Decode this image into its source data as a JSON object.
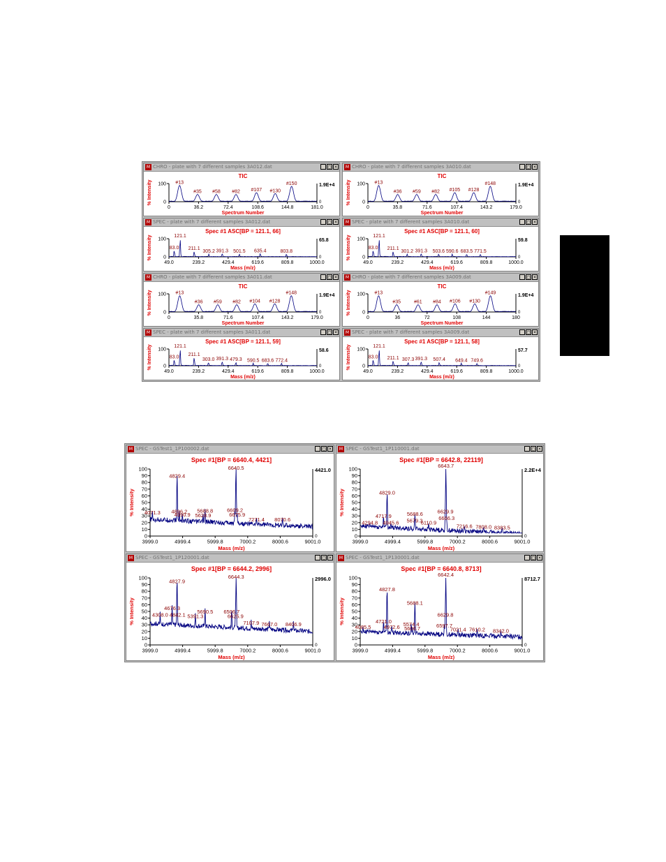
{
  "page": {
    "tab_marker": "black-tab"
  },
  "colors": {
    "red": "#e00000",
    "blue": "#000080",
    "peak_label": "#8b0000",
    "axis": "#000000"
  },
  "top_grid": [
    {
      "kind": "chro",
      "window_title": "CHRO - plate with 7 different samples 3A012.dat",
      "plot_title": "TIC",
      "ylabel": "% Intensity",
      "xlabel": "Spectrum Number",
      "max_label": "1.9E+4",
      "zero_label": "0",
      "y_top_label": "100",
      "x_ticks": [
        "0",
        "36.2",
        "72.4",
        "108.6",
        "144.8",
        "181.0"
      ],
      "xlim": [
        0,
        181
      ],
      "peaks": [
        {
          "x": 13,
          "y": 90,
          "label": "#13"
        },
        {
          "x": 35,
          "y": 40,
          "label": "#35"
        },
        {
          "x": 58,
          "y": 40,
          "label": "#58"
        },
        {
          "x": 82,
          "y": 40,
          "label": "#82"
        },
        {
          "x": 107,
          "y": 50,
          "label": "#107"
        },
        {
          "x": 130,
          "y": 45,
          "label": "#130"
        },
        {
          "x": 150,
          "y": 85,
          "label": "#150"
        }
      ]
    },
    {
      "kind": "chro",
      "window_title": "CHRO - plate with 7 different samples 3A010.dat",
      "plot_title": "TIC",
      "ylabel": "% Intensity",
      "xlabel": "Spectrum Number",
      "max_label": "1.9E+4",
      "zero_label": "0",
      "y_top_label": "100",
      "x_ticks": [
        "0",
        "35.8",
        "71.6",
        "107.4",
        "143.2",
        "179.0"
      ],
      "xlim": [
        0,
        179
      ],
      "peaks": [
        {
          "x": 13,
          "y": 90,
          "label": "#13"
        },
        {
          "x": 36,
          "y": 40,
          "label": "#36"
        },
        {
          "x": 59,
          "y": 40,
          "label": "#59"
        },
        {
          "x": 82,
          "y": 40,
          "label": "#82"
        },
        {
          "x": 105,
          "y": 50,
          "label": "#105"
        },
        {
          "x": 128,
          "y": 50,
          "label": "#128"
        },
        {
          "x": 148,
          "y": 85,
          "label": "#148"
        }
      ]
    },
    {
      "kind": "spec",
      "window_title": "SPEC - plate with 7 different samples 3A012.dat",
      "plot_title": "Spec #1 ASC[BP = 121.1, 66]",
      "ylabel": "% Intensity",
      "xlabel": "Mass (m/z)",
      "max_label": "65.8",
      "zero_label": "0",
      "y_top_label": "100",
      "x_ticks": [
        "49.0",
        "239.2",
        "429.4",
        "619.6",
        "809.8",
        "1000.0"
      ],
      "xlim": [
        49,
        1000
      ],
      "peaks": [
        {
          "x": 121.1,
          "y": 100,
          "label": "121.1"
        },
        {
          "x": 83,
          "y": 35,
          "label": "83.0"
        },
        {
          "x": 211.1,
          "y": 30,
          "label": "211.1"
        },
        {
          "x": 305.2,
          "y": 15,
          "label": "305.2"
        },
        {
          "x": 391.3,
          "y": 18,
          "label": "391.3"
        },
        {
          "x": 501.5,
          "y": 15,
          "label": "501.5"
        },
        {
          "x": 635.4,
          "y": 18,
          "label": "635.4"
        },
        {
          "x": 803.8,
          "y": 15,
          "label": "803.8"
        }
      ]
    },
    {
      "kind": "spec",
      "window_title": "SPEC - plate with 7 different samples 3A010.dat",
      "plot_title": "Spec #1 ASC[BP = 121.1, 60]",
      "ylabel": "% Intensity",
      "xlabel": "Mass (m/z)",
      "max_label": "59.8",
      "zero_label": "0",
      "y_top_label": "100",
      "x_ticks": [
        "49.0",
        "239.2",
        "429.4",
        "619.6",
        "809.8",
        "1000.0"
      ],
      "xlim": [
        49,
        1000
      ],
      "peaks": [
        {
          "x": 121.1,
          "y": 100,
          "label": "121.1"
        },
        {
          "x": 83,
          "y": 35,
          "label": "83.0"
        },
        {
          "x": 211.1,
          "y": 30,
          "label": "211.1"
        },
        {
          "x": 301.2,
          "y": 15,
          "label": "301.2"
        },
        {
          "x": 391.3,
          "y": 18,
          "label": "391.3"
        },
        {
          "x": 503.6,
          "y": 15,
          "label": "503.6"
        },
        {
          "x": 590.6,
          "y": 15,
          "label": "590.6"
        },
        {
          "x": 683.5,
          "y": 15,
          "label": "683.5"
        },
        {
          "x": 771.5,
          "y": 15,
          "label": "771.5"
        }
      ]
    },
    {
      "kind": "chro",
      "window_title": "CHRO - plate with 7 different samples 3A011.dat",
      "plot_title": "TIC",
      "ylabel": "% Intensity",
      "xlabel": "Spectrum Number",
      "max_label": "1.9E+4",
      "zero_label": "0",
      "y_top_label": "100",
      "x_ticks": [
        "0",
        "35.8",
        "71.6",
        "107.4",
        "143.2",
        "179.0"
      ],
      "xlim": [
        0,
        179
      ],
      "peaks": [
        {
          "x": 13,
          "y": 90,
          "label": "#13"
        },
        {
          "x": 36,
          "y": 40,
          "label": "#36"
        },
        {
          "x": 59,
          "y": 40,
          "label": "#59"
        },
        {
          "x": 82,
          "y": 40,
          "label": "#82"
        },
        {
          "x": 104,
          "y": 45,
          "label": "#104"
        },
        {
          "x": 128,
          "y": 45,
          "label": "#128"
        },
        {
          "x": 148,
          "y": 90,
          "label": "#148"
        }
      ]
    },
    {
      "kind": "chro",
      "window_title": "CHRO - plate with 7 different samples 3A009.dat",
      "plot_title": "TIC",
      "ylabel": "% Intensity",
      "xlabel": "Spectrum Number",
      "max_label": "1.9E+4",
      "zero_label": "0",
      "y_top_label": "100",
      "x_ticks": [
        "0",
        "36",
        "72",
        "108",
        "144",
        "180"
      ],
      "xlim": [
        0,
        180
      ],
      "peaks": [
        {
          "x": 13,
          "y": 90,
          "label": "#13"
        },
        {
          "x": 35,
          "y": 40,
          "label": "#35"
        },
        {
          "x": 61,
          "y": 40,
          "label": "#61"
        },
        {
          "x": 84,
          "y": 40,
          "label": "#84"
        },
        {
          "x": 106,
          "y": 45,
          "label": "#106"
        },
        {
          "x": 130,
          "y": 45,
          "label": "#130"
        },
        {
          "x": 149,
          "y": 90,
          "label": "#149"
        }
      ]
    },
    {
      "kind": "spec",
      "window_title": "SPEC - plate with 7 different samples 3A011.dat",
      "plot_title": "Spec #1 ASC[BP = 121.1, 59]",
      "ylabel": "% Intensity",
      "xlabel": "Mass (m/z)",
      "max_label": "58.6",
      "zero_label": "0",
      "y_top_label": "100",
      "x_ticks": [
        "49.0",
        "239.2",
        "429.4",
        "619.6",
        "809.8",
        "1000.0"
      ],
      "xlim": [
        49,
        1000
      ],
      "peaks": [
        {
          "x": 121.1,
          "y": 100,
          "label": "121.1"
        },
        {
          "x": 83,
          "y": 35,
          "label": "83.0"
        },
        {
          "x": 211.1,
          "y": 50,
          "label": "211.1"
        },
        {
          "x": 303,
          "y": 20,
          "label": "303.0"
        },
        {
          "x": 391.3,
          "y": 25,
          "label": "391.3"
        },
        {
          "x": 479.3,
          "y": 20,
          "label": "479.3"
        },
        {
          "x": 590.5,
          "y": 15,
          "label": "590.5"
        },
        {
          "x": 683.6,
          "y": 15,
          "label": "683.6"
        },
        {
          "x": 772.4,
          "y": 15,
          "label": "772.4"
        }
      ]
    },
    {
      "kind": "spec",
      "window_title": "SPEC - plate with 7 different samples 3A009.dat",
      "plot_title": "Spec #1 ASC[BP = 121.1, 58]",
      "ylabel": "% Intensity",
      "xlabel": "Mass (m/z)",
      "max_label": "57.7",
      "zero_label": "0",
      "y_top_label": "100",
      "x_ticks": [
        "49.0",
        "239.2",
        "429.4",
        "619.6",
        "809.8",
        "1000.0"
      ],
      "xlim": [
        49,
        1000
      ],
      "peaks": [
        {
          "x": 121.1,
          "y": 100,
          "label": "121.1"
        },
        {
          "x": 83,
          "y": 35,
          "label": "83.0"
        },
        {
          "x": 211.1,
          "y": 30,
          "label": "211.1"
        },
        {
          "x": 307.3,
          "y": 20,
          "label": "307.3"
        },
        {
          "x": 391.3,
          "y": 25,
          "label": "391.3"
        },
        {
          "x": 507.4,
          "y": 20,
          "label": "507.4"
        },
        {
          "x": 649.4,
          "y": 15,
          "label": "649.4"
        },
        {
          "x": 749.6,
          "y": 15,
          "label": "749.6"
        }
      ]
    }
  ],
  "bottom_grid": [
    {
      "kind": "spec",
      "window_title": "SPEC - GSTest1_1P100002.dat",
      "plot_title": "Spec #1[BP = 6640.4, 4421]",
      "ylabel": "% Intensity",
      "xlabel": "Mass (m/z)",
      "max_label": "4421.0",
      "zero_label": "0",
      "y_ticks": [
        "100",
        "90",
        "80",
        "70",
        "60",
        "50",
        "40",
        "30",
        "20",
        "10",
        "0"
      ],
      "x_ticks": [
        "3999.0",
        "4999.4",
        "5999.8",
        "7000.2",
        "8000.6",
        "9001.0"
      ],
      "xlim": [
        3999,
        9001
      ],
      "baseline": [
        25,
        14
      ],
      "peaks": [
        {
          "x": 4829.4,
          "y": 85,
          "label": "4829.4"
        },
        {
          "x": 6640.5,
          "y": 97,
          "label": "6640.5"
        },
        {
          "x": 4071.3,
          "y": 30,
          "label": "4071.3"
        },
        {
          "x": 4896.2,
          "y": 32,
          "label": "4896.2"
        },
        {
          "x": 4990.9,
          "y": 27,
          "label": "4990.9"
        },
        {
          "x": 5628.9,
          "y": 26,
          "label": "5628.9"
        },
        {
          "x": 5688.8,
          "y": 33,
          "label": "5688.8"
        },
        {
          "x": 6609.2,
          "y": 34,
          "label": "6609.2"
        },
        {
          "x": 6675.9,
          "y": 27,
          "label": "6675.9"
        },
        {
          "x": 7271.4,
          "y": 20,
          "label": "7271.4"
        },
        {
          "x": 8070.6,
          "y": 20,
          "label": "8070.6"
        }
      ]
    },
    {
      "kind": "spec",
      "window_title": "SPEC - GSTest1_1P110001.dat",
      "plot_title": "Spec #1[BP = 6642.8, 22119]",
      "ylabel": "% Intensity",
      "xlabel": "Mass (m/z)",
      "max_label": "2.2E+4",
      "zero_label": "0",
      "y_ticks": [
        "100",
        "90",
        "80",
        "70",
        "60",
        "50",
        "40",
        "30",
        "20",
        "10",
        "0"
      ],
      "x_ticks": [
        "3999.0",
        "4999.4",
        "5999.8",
        "7000.2",
        "8000.6",
        "9001.0"
      ],
      "xlim": [
        3999,
        9001
      ],
      "baseline": [
        15,
        3
      ],
      "peaks": [
        {
          "x": 6643.7,
          "y": 100,
          "label": "6643.7"
        },
        {
          "x": 4829.0,
          "y": 60,
          "label": "4829.0"
        },
        {
          "x": 4294.8,
          "y": 15,
          "label": "4294.8"
        },
        {
          "x": 4717.9,
          "y": 25,
          "label": "4717.9"
        },
        {
          "x": 4945.6,
          "y": 15,
          "label": "4945.6"
        },
        {
          "x": 5679.3,
          "y": 18,
          "label": "5679.3"
        },
        {
          "x": 5688.6,
          "y": 28,
          "label": "5688.6"
        },
        {
          "x": 6110.9,
          "y": 15,
          "label": "6110.9"
        },
        {
          "x": 6629.9,
          "y": 32,
          "label": "6629.9"
        },
        {
          "x": 6666.3,
          "y": 22,
          "label": "6666.3"
        },
        {
          "x": 7216.6,
          "y": 10,
          "label": "7216.6"
        },
        {
          "x": 7808.0,
          "y": 9,
          "label": "7808.0"
        },
        {
          "x": 8383.5,
          "y": 8,
          "label": "8383.5"
        }
      ]
    },
    {
      "kind": "spec",
      "window_title": "SPEC - GSTest1_1P120001.dat",
      "plot_title": "Spec #1[BP = 6644.2, 2996]",
      "ylabel": "% Intensity",
      "xlabel": "Mass (m/z)",
      "max_label": "2996.0",
      "zero_label": "0",
      "y_ticks": [
        "100",
        "90",
        "80",
        "70",
        "60",
        "50",
        "40",
        "30",
        "20",
        "10",
        "0"
      ],
      "x_ticks": [
        "3999.0",
        "4999.4",
        "5999.8",
        "7000.2",
        "8000.6",
        "9001.0"
      ],
      "xlim": [
        3999,
        9001
      ],
      "baseline": [
        32,
        20
      ],
      "peaks": [
        {
          "x": 4827.9,
          "y": 90,
          "label": "4827.9"
        },
        {
          "x": 6644.3,
          "y": 97,
          "label": "6644.3"
        },
        {
          "x": 4676.3,
          "y": 50,
          "label": "4676.3"
        },
        {
          "x": 4308.0,
          "y": 40,
          "label": "4308.0"
        },
        {
          "x": 4842.1,
          "y": 40,
          "label": "4842.1"
        },
        {
          "x": 5391.3,
          "y": 38,
          "label": "5391.3"
        },
        {
          "x": 5690.5,
          "y": 45,
          "label": "5690.5"
        },
        {
          "x": 6506.7,
          "y": 45,
          "label": "6506.7"
        },
        {
          "x": 6625.9,
          "y": 38,
          "label": "6625.9"
        },
        {
          "x": 7107.9,
          "y": 28,
          "label": "7107.9"
        },
        {
          "x": 7667.0,
          "y": 26,
          "label": "7667.0"
        },
        {
          "x": 8406.9,
          "y": 26,
          "label": "8406.9"
        }
      ]
    },
    {
      "kind": "spec",
      "window_title": "SPEC - GSTest1_1P130001.dat",
      "plot_title": "Spec #1[BP = 6640.8, 8713]",
      "ylabel": "% Intensity",
      "xlabel": "Mass (m/z)",
      "max_label": "8712.7",
      "zero_label": "0",
      "y_ticks": [
        "100",
        "90",
        "80",
        "70",
        "60",
        "50",
        "40",
        "30",
        "20",
        "10",
        "0"
      ],
      "x_ticks": [
        "3999.0",
        "4999.4",
        "5999.8",
        "7000.2",
        "8000.6",
        "9001.0"
      ],
      "xlim": [
        3999,
        9001
      ],
      "baseline": [
        20,
        12
      ],
      "peaks": [
        {
          "x": 6642.4,
          "y": 100,
          "label": "6642.4"
        },
        {
          "x": 4827.8,
          "y": 78,
          "label": "4827.8"
        },
        {
          "x": 5688.1,
          "y": 58,
          "label": "5688.1"
        },
        {
          "x": 4085.5,
          "y": 22,
          "label": "4085.5"
        },
        {
          "x": 4721.0,
          "y": 30,
          "label": "4721.0"
        },
        {
          "x": 4972.6,
          "y": 22,
          "label": "4972.6"
        },
        {
          "x": 5574.4,
          "y": 26,
          "label": "5574.4"
        },
        {
          "x": 5606.7,
          "y": 20,
          "label": "5606.7"
        },
        {
          "x": 6629.8,
          "y": 40,
          "label": "6629.8"
        },
        {
          "x": 6597.7,
          "y": 24,
          "label": "6597.7"
        },
        {
          "x": 7021.4,
          "y": 18,
          "label": "7021.4"
        },
        {
          "x": 7610.2,
          "y": 18,
          "label": "7610.2"
        },
        {
          "x": 8342.0,
          "y": 16,
          "label": "8342.0"
        }
      ]
    }
  ]
}
